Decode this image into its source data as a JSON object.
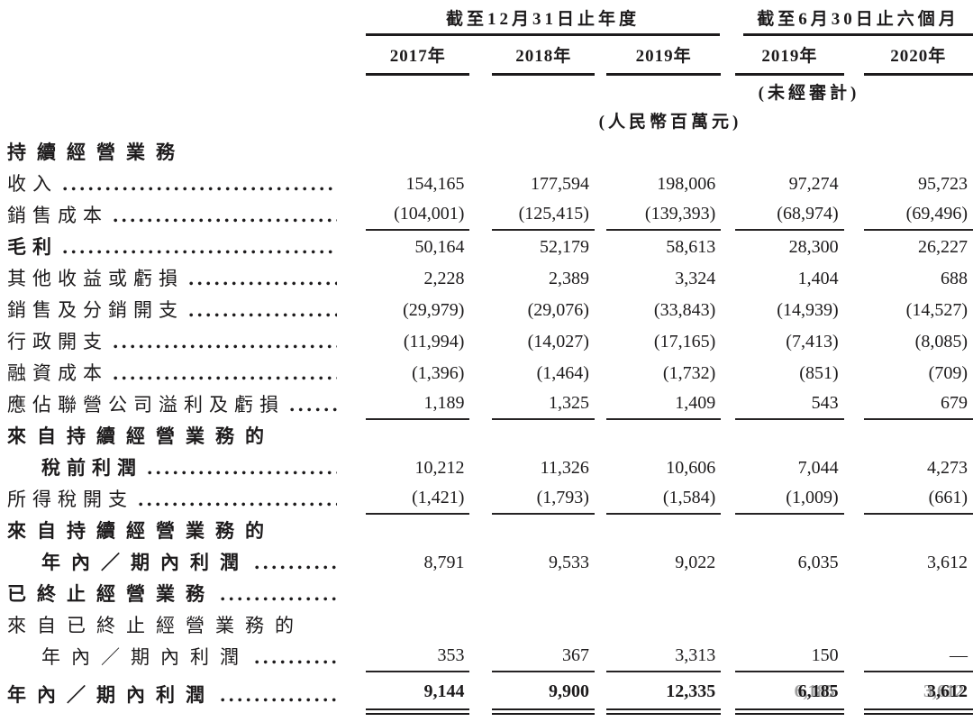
{
  "header": {
    "groups": [
      {
        "label": "截至12月31日止年度"
      },
      {
        "label": "截至6月30日止六個月"
      }
    ],
    "years": [
      "2017年",
      "2018年",
      "2019年",
      "2019年",
      "2020年"
    ],
    "unaudited_note": "(未經審計)",
    "unit_note": "(人民幣百萬元)"
  },
  "rows": [
    {
      "label": "持續經營業務"
    },
    {
      "label": "收入",
      "values": [
        "154,165",
        "177,594",
        "198,006",
        "97,274",
        "95,723"
      ]
    },
    {
      "label": "銷售成本",
      "values": [
        "(104,001)",
        "(125,415)",
        "(139,393)",
        "(68,974)",
        "(69,496)"
      ]
    },
    {
      "label": "毛利",
      "values": [
        "50,164",
        "52,179",
        "58,613",
        "28,300",
        "26,227"
      ]
    },
    {
      "label": "其他收益或虧損",
      "values": [
        "2,228",
        "2,389",
        "3,324",
        "1,404",
        "688"
      ]
    },
    {
      "label": "銷售及分銷開支",
      "values": [
        "(29,979)",
        "(29,076)",
        "(33,843)",
        "(14,939)",
        "(14,527)"
      ]
    },
    {
      "label": "行政開支",
      "values": [
        "(11,994)",
        "(14,027)",
        "(17,165)",
        "(7,413)",
        "(8,085)"
      ]
    },
    {
      "label": "融資成本",
      "values": [
        "(1,396)",
        "(1,464)",
        "(1,732)",
        "(851)",
        "(709)"
      ]
    },
    {
      "label": "應佔聯營公司溢利及虧損",
      "values": [
        "1,189",
        "1,325",
        "1,409",
        "543",
        "679"
      ]
    },
    {
      "label": "來自持續經營業務的"
    },
    {
      "label": "稅前利潤",
      "values": [
        "10,212",
        "11,326",
        "10,606",
        "7,044",
        "4,273"
      ]
    },
    {
      "label": "所得稅開支",
      "values": [
        "(1,421)",
        "(1,793)",
        "(1,584)",
        "(1,009)",
        "(661)"
      ]
    },
    {
      "label": "來自持續經營業務的"
    },
    {
      "label": "年內／期內利潤",
      "values": [
        "8,791",
        "9,533",
        "9,022",
        "6,035",
        "3,612"
      ]
    },
    {
      "label": "已終止經營業務"
    },
    {
      "label": "來自已終止經營業務的"
    },
    {
      "label": "年內／期內利潤",
      "values": [
        "353",
        "367",
        "3,313",
        "150",
        "—"
      ]
    },
    {
      "label": "年內／期內利潤",
      "values": [
        "9,144",
        "9,900",
        "12,335",
        "6,185",
        "3,612"
      ]
    }
  ]
}
